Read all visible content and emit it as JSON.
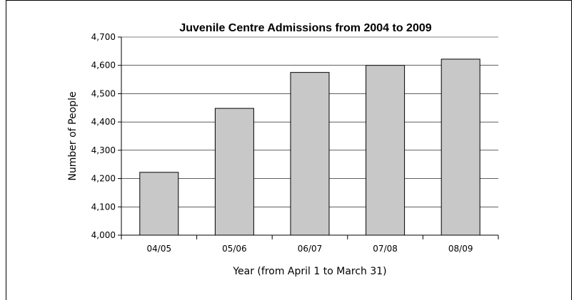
{
  "chart_data": {
    "type": "bar",
    "title": "Juvenile Centre Admissions from 2004 to 2009",
    "xlabel": "Year (from April 1 to March 31)",
    "ylabel": "Number of People",
    "categories": [
      "04/05",
      "05/06",
      "06/07",
      "07/08",
      "08/09"
    ],
    "values": [
      4222,
      4448,
      4575,
      4600,
      4622
    ],
    "ylim": [
      4000,
      4700
    ],
    "yticks": [
      4000,
      4100,
      4200,
      4300,
      4400,
      4500,
      4600,
      4700
    ],
    "ytick_labels": [
      "4,000",
      "4,100",
      "4,200",
      "4,300",
      "4,400",
      "4,500",
      "4,600",
      "4,700"
    ],
    "grid": true,
    "colors": {
      "bar_fill": "#c8c8c8",
      "bar_stroke": "#000000"
    }
  }
}
